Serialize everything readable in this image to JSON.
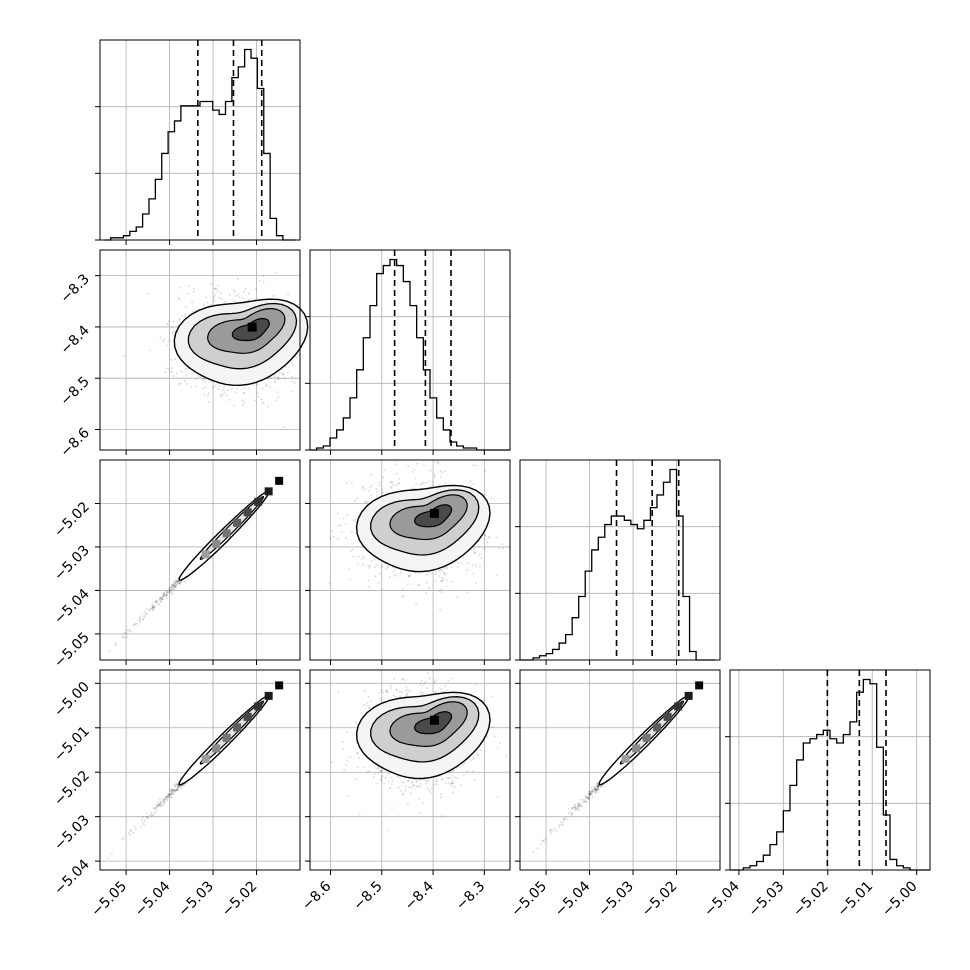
{
  "chart_data": {
    "type": "corner",
    "parameters": [
      {
        "axis_range": [
          -5.056,
          -5.01
        ],
        "ticks": [
          -5.05,
          -5.04,
          -5.03,
          -5.02
        ],
        "tick_labels": [
          "−5.05",
          "−5.04",
          "−5.03",
          "−5.02"
        ]
      },
      {
        "axis_range": [
          -8.64,
          -8.25
        ],
        "ticks": [
          -8.6,
          -8.5,
          -8.4,
          -8.3
        ],
        "tick_labels": [
          "−8.6",
          "−8.5",
          "−8.4",
          "−8.3"
        ]
      },
      {
        "axis_range": [
          -5.056,
          -5.01
        ],
        "ticks": [
          -5.05,
          -5.04,
          -5.03,
          -5.02
        ],
        "tick_labels": [
          "−5.05",
          "−5.04",
          "−5.03",
          "−5.02"
        ]
      },
      {
        "axis_range": [
          -5.042,
          -4.997
        ],
        "ticks": [
          -5.04,
          -5.03,
          -5.02,
          -5.01,
          -5.0
        ],
        "tick_labels": [
          "−5.04",
          "−5.03",
          "−5.02",
          "−5.01",
          "−5.00"
        ]
      }
    ],
    "histograms": [
      {
        "edges_range": [
          -5.055,
          -5.011
        ],
        "counts": [
          0,
          1,
          1,
          2,
          4,
          6,
          12,
          19,
          28,
          40,
          50,
          55,
          62,
          62,
          62,
          64,
          64,
          60,
          58,
          64,
          75,
          80,
          88,
          84,
          70,
          40,
          10,
          2,
          0,
          0
        ],
        "quantiles": [
          -5.0335,
          -5.0253,
          -5.0188
        ]
      },
      {
        "edges_range": [
          -8.64,
          -8.25
        ],
        "counts": [
          0,
          1,
          2,
          6,
          10,
          16,
          26,
          40,
          56,
          72,
          88,
          92,
          95,
          92,
          84,
          72,
          56,
          40,
          26,
          16,
          10,
          4,
          2,
          1,
          1,
          0,
          0,
          0,
          0,
          0
        ],
        "quantiles": [
          -8.475,
          -8.415,
          -8.365
        ]
      },
      {
        "edges_range": [
          -5.056,
          -5.011
        ],
        "counts": [
          0,
          0,
          1,
          2,
          3,
          5,
          8,
          12,
          20,
          30,
          42,
          52,
          58,
          64,
          68,
          68,
          66,
          64,
          62,
          66,
          72,
          78,
          84,
          90,
          68,
          30,
          4,
          0,
          0,
          0
        ],
        "quantiles": [
          -5.0338,
          -5.0256,
          -5.0195
        ]
      },
      {
        "edges_range": [
          -5.042,
          -4.997
        ],
        "counts": [
          0,
          0,
          1,
          2,
          4,
          7,
          12,
          18,
          28,
          40,
          52,
          60,
          62,
          64,
          66,
          62,
          60,
          64,
          70,
          84,
          90,
          88,
          58,
          26,
          5,
          2,
          1,
          0,
          0,
          0
        ],
        "quantiles": [
          -5.0201,
          -5.0129,
          -5.0069
        ]
      }
    ],
    "joint_density_modes": [
      {
        "pair": [
          0,
          1
        ],
        "center": [
          -5.0225,
          -8.415
        ]
      },
      {
        "pair": [
          0,
          2
        ],
        "center": [
          -5.0225,
          -5.0225
        ]
      },
      {
        "pair": [
          1,
          2
        ],
        "center": [
          -8.41,
          -5.024
        ]
      },
      {
        "pair": [
          0,
          3
        ],
        "center": [
          -5.0225,
          -5.008
        ]
      },
      {
        "pair": [
          1,
          3
        ],
        "center": [
          -8.41,
          -5.01
        ]
      },
      {
        "pair": [
          2,
          3
        ],
        "center": [
          -5.0225,
          -5.008
        ]
      }
    ],
    "grid": true
  }
}
